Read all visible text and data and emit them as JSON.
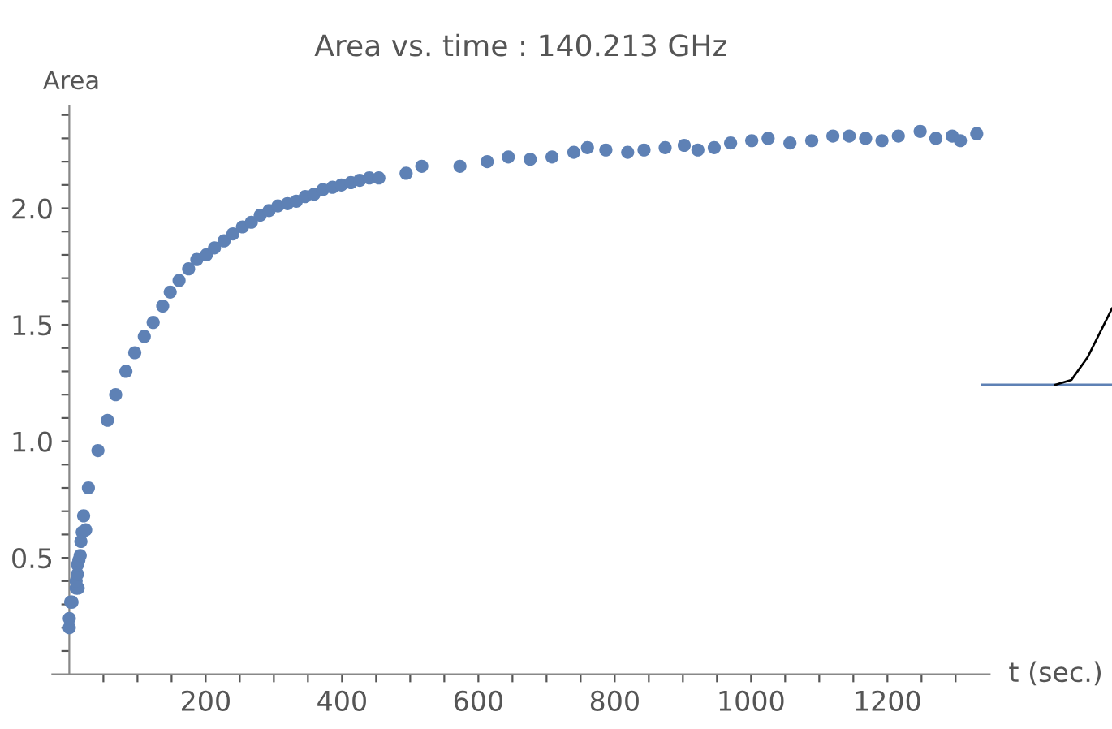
{
  "chart_data": {
    "type": "scatter",
    "title": "Area vs. time : 140.213 GHz",
    "xlabel": "t (sec.)",
    "ylabel": "Area",
    "x": [
      0,
      0,
      2,
      4,
      10,
      13,
      10,
      12,
      12,
      14,
      16,
      17,
      19,
      24,
      21,
      28,
      42,
      56,
      68,
      83,
      96,
      110,
      123,
      137,
      148,
      161,
      175,
      187,
      201,
      213,
      227,
      240,
      254,
      267,
      280,
      293,
      306,
      320,
      333,
      346,
      359,
      372,
      386,
      399,
      413,
      426,
      440,
      454,
      494,
      517,
      573,
      613,
      644,
      676,
      708,
      740,
      760,
      787,
      819,
      843,
      874,
      902,
      922,
      946,
      970,
      1001,
      1025,
      1057,
      1089,
      1120,
      1144,
      1168,
      1192,
      1216,
      1248,
      1271,
      1295,
      1307,
      1331
    ],
    "series": [
      {
        "color": "#5e81b5",
        "values": [
          0.2,
          0.24,
          0.31,
          0.31,
          0.37,
          0.37,
          0.4,
          0.43,
          0.47,
          0.49,
          0.51,
          0.57,
          0.61,
          0.62,
          0.68,
          0.8,
          0.96,
          1.09,
          1.2,
          1.3,
          1.38,
          1.45,
          1.51,
          1.58,
          1.64,
          1.69,
          1.74,
          1.78,
          1.8,
          1.83,
          1.86,
          1.89,
          1.92,
          1.94,
          1.97,
          1.99,
          2.01,
          2.02,
          2.03,
          2.05,
          2.06,
          2.08,
          2.09,
          2.1,
          2.11,
          2.12,
          2.13,
          2.13,
          2.15,
          2.18,
          2.18,
          2.2,
          2.22,
          2.21,
          2.22,
          2.24,
          2.26,
          2.25,
          2.24,
          2.25,
          2.26,
          2.27,
          2.25,
          2.26,
          2.28,
          2.29,
          2.3,
          2.28,
          2.29,
          2.31,
          2.31,
          2.3,
          2.29,
          2.31,
          2.33,
          2.3,
          2.31,
          2.29,
          2.32
        ]
      }
    ],
    "xlim": [
      -25,
      1350
    ],
    "ylim": [
      0,
      2.44
    ],
    "xticks": [
      {
        "value": 50,
        "label": null
      },
      {
        "value": 100,
        "label": null
      },
      {
        "value": 150,
        "label": null
      },
      200,
      {
        "value": 250,
        "label": null
      },
      {
        "value": 300,
        "label": null
      },
      {
        "value": 350,
        "label": null
      },
      400,
      {
        "value": 450,
        "label": null
      },
      {
        "value": 500,
        "label": null
      },
      {
        "value": 550,
        "label": null
      },
      600,
      {
        "value": 650,
        "label": null
      },
      {
        "value": 700,
        "label": null
      },
      {
        "value": 750,
        "label": null
      },
      800,
      {
        "value": 850,
        "label": null
      },
      {
        "value": 900,
        "label": null
      },
      {
        "value": 950,
        "label": null
      },
      1000,
      {
        "value": 1050,
        "label": null
      },
      {
        "value": 1100,
        "label": null
      },
      {
        "value": 1150,
        "label": null
      },
      1200,
      {
        "value": 1250,
        "label": null
      },
      {
        "value": 1300,
        "label": null
      }
    ],
    "yticks": [
      {
        "value": 0.1,
        "label": null
      },
      {
        "value": 0.2,
        "label": null
      },
      {
        "value": 0.3,
        "label": null
      },
      {
        "value": 0.4,
        "label": null
      },
      0.5,
      {
        "value": 0.6,
        "label": null
      },
      {
        "value": 0.7,
        "label": null
      },
      {
        "value": 0.8,
        "label": null
      },
      {
        "value": 0.9,
        "label": null
      },
      {
        "value": 1,
        "label": "1.0"
      },
      {
        "value": 1.1,
        "label": null
      },
      {
        "value": 1.2,
        "label": null
      },
      {
        "value": 1.3,
        "label": null
      },
      {
        "value": 1.4,
        "label": null
      },
      1.5,
      {
        "value": 1.6,
        "label": null
      },
      {
        "value": 1.7,
        "label": null
      },
      {
        "value": 1.8,
        "label": null
      },
      {
        "value": 1.9,
        "label": null
      },
      {
        "value": 2,
        "label": "2.0"
      },
      {
        "value": 2.1,
        "label": null
      },
      {
        "value": 2.2,
        "label": null
      },
      {
        "value": 2.3,
        "label": null
      },
      {
        "value": 2.4,
        "label": null
      }
    ],
    "marker": "circle",
    "grid": false,
    "legend": false
  }
}
